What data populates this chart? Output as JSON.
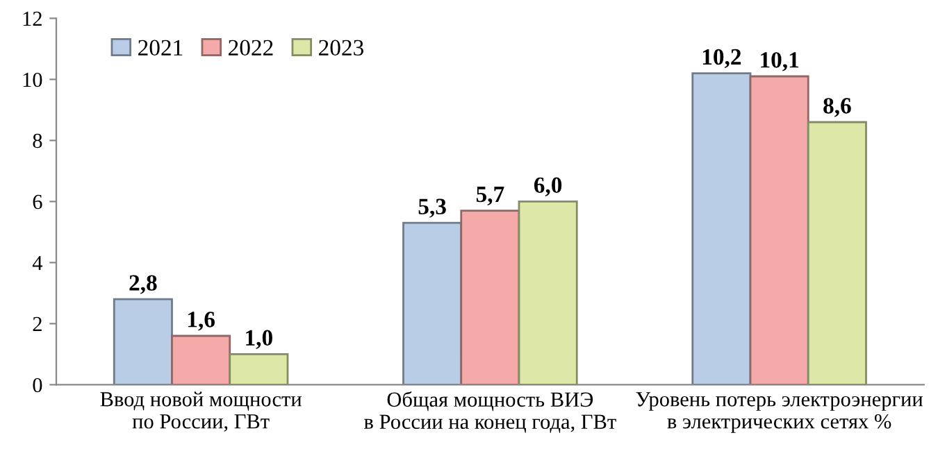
{
  "chart_data": {
    "type": "bar",
    "categories": [
      "Ввод новой мощности\nпо России, ГВт",
      "Общая мощность ВИЭ\nв России на конец года, ГВт",
      "Уровень потерь электроэнергии\nв электрических сетях %"
    ],
    "series": [
      {
        "name": "2021",
        "color": "#b9cde6",
        "values": [
          2.8,
          5.3,
          10.2
        ],
        "value_labels": [
          "2,8",
          "5,3",
          "10,2"
        ]
      },
      {
        "name": "2022",
        "color": "#f5aaaa",
        "values": [
          1.6,
          5.7,
          10.1
        ],
        "value_labels": [
          "1,6",
          "5,7",
          "10,1"
        ]
      },
      {
        "name": "2023",
        "color": "#dde8a8",
        "values": [
          1.0,
          6.0,
          8.6
        ],
        "value_labels": [
          "1,0",
          "6,0",
          "8,6"
        ]
      }
    ],
    "ylim": [
      0,
      12
    ],
    "yticks": [
      0,
      2,
      4,
      6,
      8,
      10,
      12
    ],
    "grid": false,
    "legend": "top left"
  }
}
